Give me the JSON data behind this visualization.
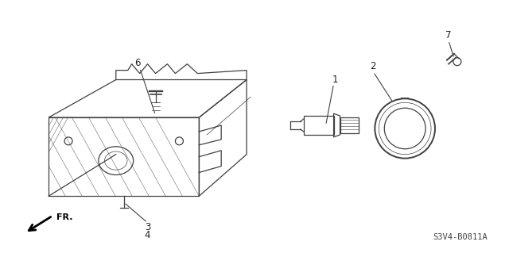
{
  "bg_color": "#ffffff",
  "line_color": "#404040",
  "diagram_code": "S3V4-B0811A",
  "figsize": [
    6.4,
    3.19
  ],
  "dpi": 100
}
